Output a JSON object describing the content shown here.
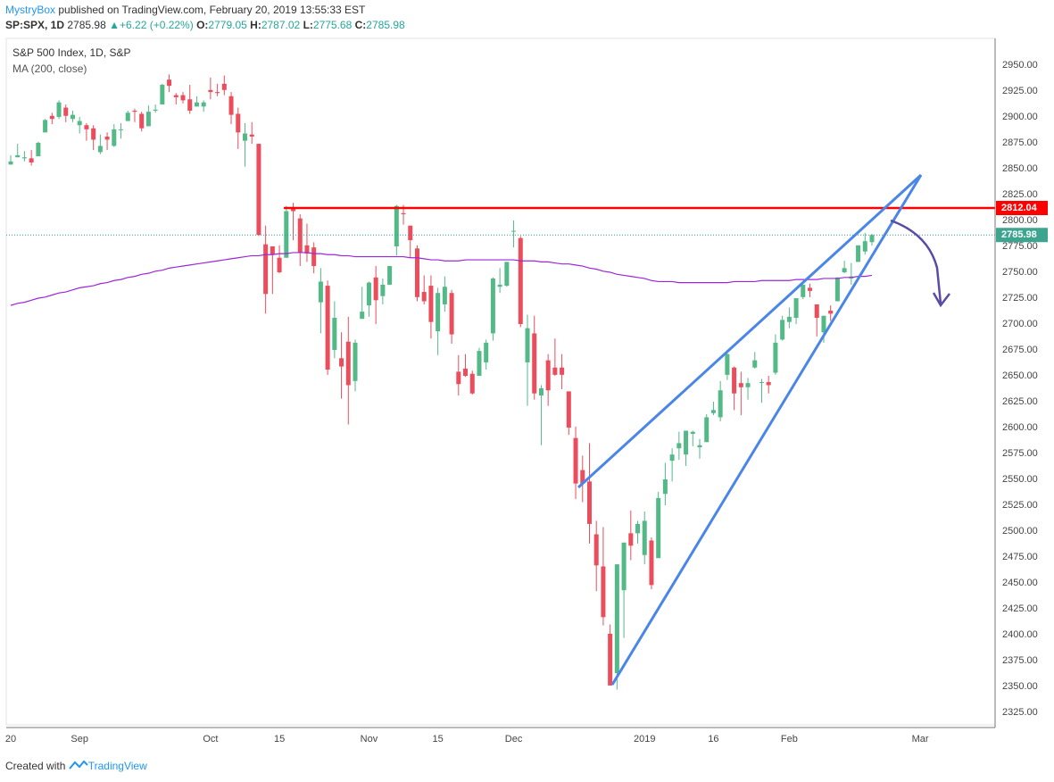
{
  "header": {
    "author": "MystryBox",
    "published": "published on TradingView.com, February 20, 2019 13:55:33 EST",
    "symbol": "SP:SPX, 1D",
    "last": "2785.98",
    "arrow": "▲",
    "change": "+6.22 (+0.22%)",
    "o_label": "O:",
    "o": "2779.05",
    "h_label": "H:",
    "h": "2787.02",
    "l_label": "L:",
    "l": "2775.68",
    "c_label": "C:",
    "c": "2785.98"
  },
  "footer": {
    "prefix": "Created with",
    "brand": "TradingView"
  },
  "chart_data": {
    "type": "candlestick",
    "title": "S&P 500 Index, 1D, S&P",
    "up_color": "#53b987",
    "down_color": "#eb4d5c",
    "x": [
      "2018-08-20",
      "2018-08-21",
      "2018-08-22",
      "2018-08-23",
      "2018-08-24",
      "2018-08-27",
      "2018-08-28",
      "2018-08-29",
      "2018-08-30",
      "2018-08-31",
      "2018-09-04",
      "2018-09-05",
      "2018-09-06",
      "2018-09-07",
      "2018-09-10",
      "2018-09-11",
      "2018-09-12",
      "2018-09-13",
      "2018-09-14",
      "2018-09-17",
      "2018-09-18",
      "2018-09-19",
      "2018-09-20",
      "2018-09-21",
      "2018-09-24",
      "2018-09-25",
      "2018-09-26",
      "2018-09-27",
      "2018-09-28",
      "2018-10-01",
      "2018-10-02",
      "2018-10-03",
      "2018-10-04",
      "2018-10-05",
      "2018-10-08",
      "2018-10-09",
      "2018-10-10",
      "2018-10-11",
      "2018-10-12",
      "2018-10-15",
      "2018-10-16",
      "2018-10-17",
      "2018-10-18",
      "2018-10-19",
      "2018-10-22",
      "2018-10-23",
      "2018-10-24",
      "2018-10-25",
      "2018-10-26",
      "2018-10-29",
      "2018-10-30",
      "2018-10-31",
      "2018-11-01",
      "2018-11-02",
      "2018-11-05",
      "2018-11-06",
      "2018-11-07",
      "2018-11-08",
      "2018-11-09",
      "2018-11-12",
      "2018-11-13",
      "2018-11-14",
      "2018-11-15",
      "2018-11-16",
      "2018-11-19",
      "2018-11-20",
      "2018-11-21",
      "2018-11-23",
      "2018-11-26",
      "2018-11-27",
      "2018-11-28",
      "2018-11-29",
      "2018-11-30",
      "2018-12-03",
      "2018-12-04",
      "2018-12-06",
      "2018-12-07",
      "2018-12-10",
      "2018-12-11",
      "2018-12-12",
      "2018-12-13",
      "2018-12-14",
      "2018-12-17",
      "2018-12-18",
      "2018-12-19",
      "2018-12-20",
      "2018-12-21",
      "2018-12-24",
      "2018-12-26",
      "2018-12-27",
      "2018-12-28",
      "2018-12-31",
      "2019-01-02",
      "2019-01-03",
      "2019-01-04",
      "2019-01-07",
      "2019-01-08",
      "2019-01-09",
      "2019-01-10",
      "2019-01-11",
      "2019-01-14",
      "2019-01-15",
      "2019-01-16",
      "2019-01-17",
      "2019-01-18",
      "2019-01-22",
      "2019-01-23",
      "2019-01-24",
      "2019-01-25",
      "2019-01-28",
      "2019-01-29",
      "2019-01-30",
      "2019-01-31",
      "2019-02-01",
      "2019-02-04",
      "2019-02-05",
      "2019-02-06",
      "2019-02-07",
      "2019-02-08",
      "2019-02-11",
      "2019-02-12",
      "2019-02-13",
      "2019-02-14",
      "2019-02-15",
      "2019-02-19",
      "2019-02-20"
    ],
    "open": [
      2854,
      2861,
      2860,
      2860,
      2862,
      2885,
      2901,
      2900,
      2909,
      2898,
      2892,
      2892,
      2889,
      2866,
      2881,
      2872,
      2888,
      2896,
      2906,
      2903,
      2891,
      2906,
      2912,
      2936,
      2921,
      2921,
      2917,
      2910,
      2910,
      2926,
      2924,
      2932,
      2920,
      2903,
      2877,
      2883,
      2874,
      2777,
      2775,
      2764,
      2764,
      2812,
      2802,
      2776,
      2774,
      2721,
      2737,
      2675,
      2667,
      2683,
      2645,
      2705,
      2718,
      2745,
      2727,
      2738,
      2775,
      2807,
      2795,
      2773,
      2731,
      2737,
      2693,
      2719,
      2730,
      2654,
      2657,
      2652,
      2650,
      2663,
      2691,
      2736,
      2737,
      2790,
      2783,
      2663,
      2691,
      2631,
      2665,
      2658,
      2658,
      2635,
      2590,
      2559,
      2548,
      2497,
      2466,
      2401,
      2363,
      2443,
      2498,
      2498,
      2477,
      2491,
      2474,
      2536,
      2568,
      2580,
      2574,
      2594,
      2581,
      2586,
      2614,
      2610,
      2651,
      2658,
      2643,
      2639,
      2658,
      2644,
      2644,
      2653,
      2685,
      2702,
      2706,
      2726,
      2735,
      2719,
      2692,
      2713,
      2722,
      2750,
      2744,
      2760,
      2770,
      2779.05
    ],
    "high": [
      2863,
      2874,
      2867,
      2868,
      2876,
      2898,
      2904,
      2916,
      2912,
      2906,
      2900,
      2894,
      2892,
      2883,
      2885,
      2893,
      2894,
      2906,
      2908,
      2905,
      2911,
      2912,
      2932,
      2941,
      2923,
      2924,
      2931,
      2920,
      2916,
      2938,
      2932,
      2940,
      2924,
      2909,
      2894,
      2895,
      2874,
      2795,
      2775,
      2776,
      2814,
      2817,
      2806,
      2797,
      2779,
      2754,
      2742,
      2722,
      2692,
      2707,
      2685,
      2736,
      2741,
      2756,
      2744,
      2756,
      2815,
      2815,
      2795,
      2776,
      2747,
      2747,
      2735,
      2746,
      2733,
      2670,
      2671,
      2655,
      2677,
      2685,
      2745,
      2754,
      2760,
      2800,
      2785,
      2709,
      2708,
      2641,
      2671,
      2686,
      2671,
      2635,
      2601,
      2573,
      2585,
      2510,
      2504,
      2410,
      2468,
      2489,
      2520,
      2510,
      2519,
      2494,
      2538,
      2566,
      2580,
      2596,
      2597,
      2597,
      2589,
      2613,
      2625,
      2645,
      2675,
      2659,
      2654,
      2648,
      2673,
      2647,
      2650,
      2690,
      2708,
      2716,
      2725,
      2738,
      2739,
      2719,
      2708,
      2718,
      2745,
      2761,
      2759,
      2776,
      2788,
      2787.02
    ],
    "low": [
      2854,
      2861,
      2857,
      2853,
      2862,
      2885,
      2893,
      2898,
      2895,
      2895,
      2884,
      2877,
      2868,
      2864,
      2868,
      2871,
      2879,
      2896,
      2895,
      2886,
      2891,
      2904,
      2912,
      2924,
      2912,
      2913,
      2903,
      2910,
      2905,
      2917,
      2920,
      2921,
      2893,
      2869,
      2852,
      2874,
      2785,
      2710,
      2729,
      2749,
      2764,
      2781,
      2756,
      2760,
      2749,
      2691,
      2651,
      2667,
      2628,
      2603,
      2635,
      2705,
      2707,
      2700,
      2719,
      2738,
      2766,
      2796,
      2764,
      2722,
      2719,
      2686,
      2670,
      2712,
      2681,
      2631,
      2649,
      2632,
      2650,
      2656,
      2684,
      2730,
      2736,
      2774,
      2697,
      2621,
      2627,
      2583,
      2621,
      2650,
      2637,
      2593,
      2531,
      2528,
      2488,
      2442,
      2409,
      2351,
      2347,
      2397,
      2472,
      2488,
      2468,
      2444,
      2474,
      2525,
      2548,
      2569,
      2563,
      2582,
      2570,
      2586,
      2612,
      2606,
      2646,
      2617,
      2612,
      2627,
      2657,
      2624,
      2633,
      2651,
      2684,
      2696,
      2700,
      2724,
      2726,
      2688,
      2682,
      2703,
      2722,
      2749,
      2738,
      2760,
      2767,
      2775.68
    ],
    "close": [
      2857,
      2863,
      2861,
      2856,
      2875,
      2897,
      2898,
      2914,
      2901,
      2902,
      2896,
      2888,
      2878,
      2872,
      2878,
      2888,
      2888,
      2904,
      2905,
      2889,
      2905,
      2907,
      2931,
      2930,
      2919,
      2916,
      2906,
      2914,
      2914,
      2924,
      2923,
      2926,
      2902,
      2885,
      2884,
      2881,
      2786,
      2729,
      2767,
      2750,
      2809,
      2809,
      2769,
      2768,
      2756,
      2741,
      2656,
      2706,
      2659,
      2641,
      2682,
      2712,
      2740,
      2723,
      2738,
      2756,
      2814,
      2806,
      2781,
      2726,
      2722,
      2702,
      2730,
      2736,
      2690,
      2642,
      2650,
      2633,
      2674,
      2682,
      2744,
      2738,
      2760,
      2790,
      2700,
      2696,
      2633,
      2638,
      2636,
      2651,
      2651,
      2600,
      2546,
      2546,
      2507,
      2467,
      2417,
      2351,
      2468,
      2489,
      2486,
      2507,
      2510,
      2448,
      2532,
      2550,
      2574,
      2585,
      2597,
      2596,
      2583,
      2610,
      2617,
      2636,
      2671,
      2633,
      2639,
      2643,
      2665,
      2644,
      2641,
      2682,
      2704,
      2707,
      2725,
      2738,
      2732,
      2706,
      2708,
      2710,
      2745,
      2754,
      2746,
      2776,
      2780,
      2785.98
    ],
    "ma": {
      "name": "MA (200, close)",
      "color": "#9c27d9",
      "values": [
        2718,
        2720,
        2721,
        2723,
        2725,
        2726,
        2728,
        2730,
        2731,
        2733,
        2735,
        2736,
        2737,
        2739,
        2740,
        2742,
        2743,
        2745,
        2746,
        2748,
        2749,
        2751,
        2752,
        2754,
        2755,
        2756,
        2757,
        2758,
        2759,
        2760,
        2761,
        2762,
        2763,
        2764,
        2765,
        2766,
        2766,
        2767,
        2767,
        2768,
        2768,
        2769,
        2769,
        2769,
        2768,
        2768,
        2767,
        2767,
        2766,
        2766,
        2765,
        2765,
        2765,
        2765,
        2765,
        2765,
        2765,
        2765,
        2764,
        2764,
        2763,
        2762,
        2762,
        2761,
        2761,
        2761,
        2762,
        2762,
        2762,
        2762,
        2762,
        2762,
        2762,
        2762,
        2761,
        2761,
        2761,
        2760,
        2760,
        2759,
        2758,
        2758,
        2757,
        2756,
        2754,
        2753,
        2751,
        2750,
        2748,
        2747,
        2746,
        2745,
        2744,
        2742,
        2741,
        2741,
        2741,
        2740,
        2740,
        2740,
        2740,
        2740,
        2740,
        2740,
        2740,
        2741,
        2741,
        2741,
        2741,
        2742,
        2742,
        2742,
        2742,
        2742,
        2743,
        2743,
        2743,
        2743,
        2744,
        2744,
        2744,
        2745,
        2745,
        2746,
        2746,
        2747
      ]
    },
    "level": {
      "value": 2812.04,
      "color": "#ff0000"
    },
    "ylim": [
      2313,
      2971.5
    ],
    "yticks": [
      {
        "value": 2325,
        "label": "2325.00"
      },
      {
        "value": 2350,
        "label": "2350.00"
      },
      {
        "value": 2375,
        "label": "2375.00"
      },
      {
        "value": 2400,
        "label": "2400.00"
      },
      {
        "value": 2425,
        "label": "2425.00"
      },
      {
        "value": 2450,
        "label": "2450.00"
      },
      {
        "value": 2475,
        "label": "2475.00"
      },
      {
        "value": 2500,
        "label": "2500.00"
      },
      {
        "value": 2525,
        "label": "2525.00"
      },
      {
        "value": 2550,
        "label": "2550.00"
      },
      {
        "value": 2575,
        "label": "2575.00"
      },
      {
        "value": 2600,
        "label": "2600.00"
      },
      {
        "value": 2625,
        "label": "2625.00"
      },
      {
        "value": 2650,
        "label": "2650.00"
      },
      {
        "value": 2675,
        "label": "2675.00"
      },
      {
        "value": 2700,
        "label": "2700.00"
      },
      {
        "value": 2725,
        "label": "2725.00"
      },
      {
        "value": 2750,
        "label": "2750.00"
      },
      {
        "value": 2775,
        "label": "2775.00"
      },
      {
        "value": 2800,
        "label": "2800.00"
      },
      {
        "value": 2825,
        "label": "2825.00"
      },
      {
        "value": 2850,
        "label": "2850.00"
      },
      {
        "value": 2875,
        "label": "2875.00"
      },
      {
        "value": 2900,
        "label": "2900.00"
      },
      {
        "value": 2925,
        "label": "2925.00"
      },
      {
        "value": 2950,
        "label": "2950.00"
      }
    ],
    "xticks": [
      {
        "value": 0,
        "label": "20"
      },
      {
        "value": 10,
        "label": "Sep"
      },
      {
        "value": 29,
        "label": "Oct"
      },
      {
        "value": 39,
        "label": "15"
      },
      {
        "value": 52,
        "label": "Nov"
      },
      {
        "value": 62,
        "label": "15"
      },
      {
        "value": 73,
        "label": "Dec"
      },
      {
        "value": 92,
        "label": "2019"
      },
      {
        "value": 102,
        "label": "16"
      },
      {
        "value": 113,
        "label": "Feb"
      },
      {
        "value": 132,
        "label": "Mar"
      }
    ],
    "grid": true
  }
}
